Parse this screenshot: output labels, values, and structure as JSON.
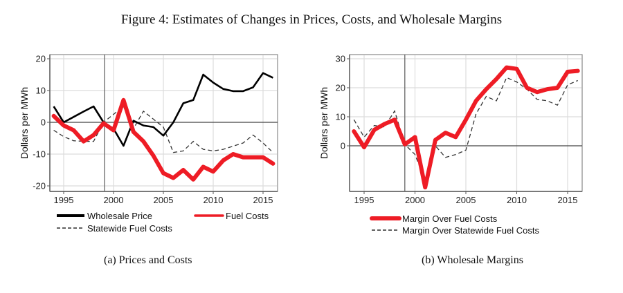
{
  "figure": {
    "title": "Figure 4: Estimates of Changes in Prices, Costs, and Wholesale Margins"
  },
  "chart_data": [
    {
      "type": "line",
      "caption": "(a) Prices and Costs",
      "title": "",
      "xlabel": "",
      "ylabel": "Dollars per MWh",
      "xlim": [
        1994,
        2016
      ],
      "ylim": [
        -20,
        20
      ],
      "xticks": [
        "1995",
        "2000",
        "2005",
        "2010",
        "2015"
      ],
      "yticks": [
        "-20",
        "-10",
        "0",
        "10",
        "20"
      ],
      "reference_vline": 1999.1,
      "reference_hline": 0,
      "grid": true,
      "legend_position": "bottom",
      "x": [
        1994,
        1995,
        1996,
        1997,
        1998,
        1999,
        2000,
        2001,
        2002,
        2003,
        2004,
        2005,
        2006,
        2007,
        2008,
        2009,
        2010,
        2011,
        2012,
        2013,
        2014,
        2015,
        2016
      ],
      "series": [
        {
          "name": "Wholesale Price",
          "style": "solid-black",
          "values": [
            5,
            0,
            1.7,
            3.4,
            5,
            0,
            -2,
            -7.4,
            0.5,
            -1,
            -1.5,
            -4.2,
            0,
            6,
            7,
            15,
            12.5,
            10.5,
            9.8,
            9.8,
            11,
            15.5,
            14
          ]
        },
        {
          "name": "Fuel Costs",
          "style": "thick-red",
          "values": [
            2,
            -1,
            -2.5,
            -6,
            -4,
            -0.3,
            -2.5,
            7,
            -3,
            -6,
            -10.5,
            -16,
            -17.5,
            -15,
            -18,
            -14,
            -15.5,
            -12,
            -10,
            -11,
            -11,
            -11,
            -13
          ]
        },
        {
          "name": "Statewide Fuel Costs",
          "style": "dashed",
          "values": [
            -2.5,
            -4.5,
            -5.8,
            -6,
            -6,
            0,
            2.5,
            5,
            -2,
            3.5,
            1,
            -1.5,
            -9.5,
            -9,
            -6,
            -8.5,
            -9,
            -8.5,
            -7.5,
            -6.5,
            -4,
            -6.5,
            -9.5
          ]
        }
      ]
    },
    {
      "type": "line",
      "caption": "(b) Wholesale Margins",
      "title": "",
      "xlabel": "",
      "ylabel": "Dollars per MWh",
      "xlim": [
        1994,
        2016
      ],
      "ylim": [
        -15,
        30
      ],
      "xticks": [
        "1995",
        "2000",
        "2005",
        "2010",
        "2015"
      ],
      "yticks": [
        "0",
        "10",
        "20",
        "30"
      ],
      "reference_vline": 1999,
      "reference_hline": 0,
      "grid": true,
      "legend_position": "bottom",
      "x": [
        1994,
        1995,
        1996,
        1997,
        1998,
        1999,
        2000,
        2001,
        2002,
        2003,
        2004,
        2005,
        2006,
        2007,
        2008,
        2009,
        2010,
        2011,
        2012,
        2013,
        2014,
        2015,
        2016
      ],
      "series": [
        {
          "name": "Margin Over Fuel Costs",
          "style": "thick-red",
          "values": [
            5,
            -0.5,
            5.5,
            7.5,
            9,
            0.5,
            3,
            -14.3,
            2,
            4.5,
            3,
            9,
            15.5,
            19.5,
            23,
            27,
            26.5,
            20,
            18.5,
            19.5,
            20,
            25.5,
            25.8
          ]
        },
        {
          "name": "Margin Over Statewide Fuel Costs",
          "style": "dashed",
          "values": [
            9,
            3,
            7,
            6.5,
            12,
            0.5,
            -3,
            -12,
            0,
            -4,
            -3,
            -1.5,
            11,
            17,
            15.5,
            23.5,
            22,
            19.5,
            16,
            15.5,
            14,
            21,
            22.5
          ]
        }
      ]
    }
  ]
}
